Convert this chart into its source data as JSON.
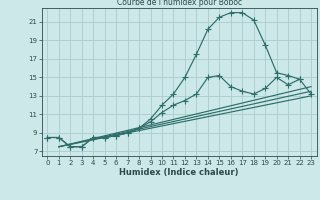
{
  "title": "Courbe de l'humidex pour Boboc",
  "xlabel": "Humidex (Indice chaleur)",
  "background_color": "#cce8e8",
  "grid_color": "#aacccc",
  "line_color": "#2d6e6a",
  "xlim": [
    -0.5,
    23.5
  ],
  "ylim": [
    6.5,
    22.5
  ],
  "xticks": [
    0,
    1,
    2,
    3,
    4,
    5,
    6,
    7,
    8,
    9,
    10,
    11,
    12,
    13,
    14,
    15,
    16,
    17,
    18,
    19,
    20,
    21,
    22,
    23
  ],
  "yticks": [
    7,
    9,
    11,
    13,
    15,
    17,
    19,
    21
  ],
  "curve1_x": [
    0,
    1,
    2,
    3,
    4,
    5,
    6,
    7,
    8,
    9,
    10,
    11,
    12,
    13,
    14,
    15,
    16,
    17,
    18,
    19,
    20,
    21,
    22
  ],
  "curve1_y": [
    8.5,
    8.5,
    7.5,
    7.5,
    8.5,
    8.5,
    8.7,
    9.0,
    9.5,
    10.5,
    12.0,
    13.2,
    15.0,
    17.5,
    20.2,
    21.5,
    22.0,
    22.0,
    21.2,
    18.5,
    15.5,
    15.2,
    14.8
  ],
  "curve2_x": [
    0,
    1,
    2,
    3,
    4,
    5,
    6,
    7,
    8,
    9,
    10,
    11,
    12,
    13,
    14,
    15,
    16,
    17,
    18,
    19,
    20,
    21,
    22,
    23
  ],
  "curve2_y": [
    8.5,
    8.5,
    7.5,
    7.5,
    8.5,
    8.5,
    8.7,
    9.0,
    9.5,
    10.2,
    11.2,
    12.0,
    12.5,
    13.2,
    15.0,
    15.2,
    14.0,
    13.5,
    13.2,
    13.8,
    15.0,
    14.2,
    14.8,
    13.2
  ],
  "line3": [
    [
      1,
      23
    ],
    [
      7.5,
      14.0
    ]
  ],
  "line4": [
    [
      1,
      23
    ],
    [
      7.5,
      13.5
    ]
  ],
  "line5": [
    [
      1,
      23
    ],
    [
      7.5,
      13.0
    ]
  ]
}
